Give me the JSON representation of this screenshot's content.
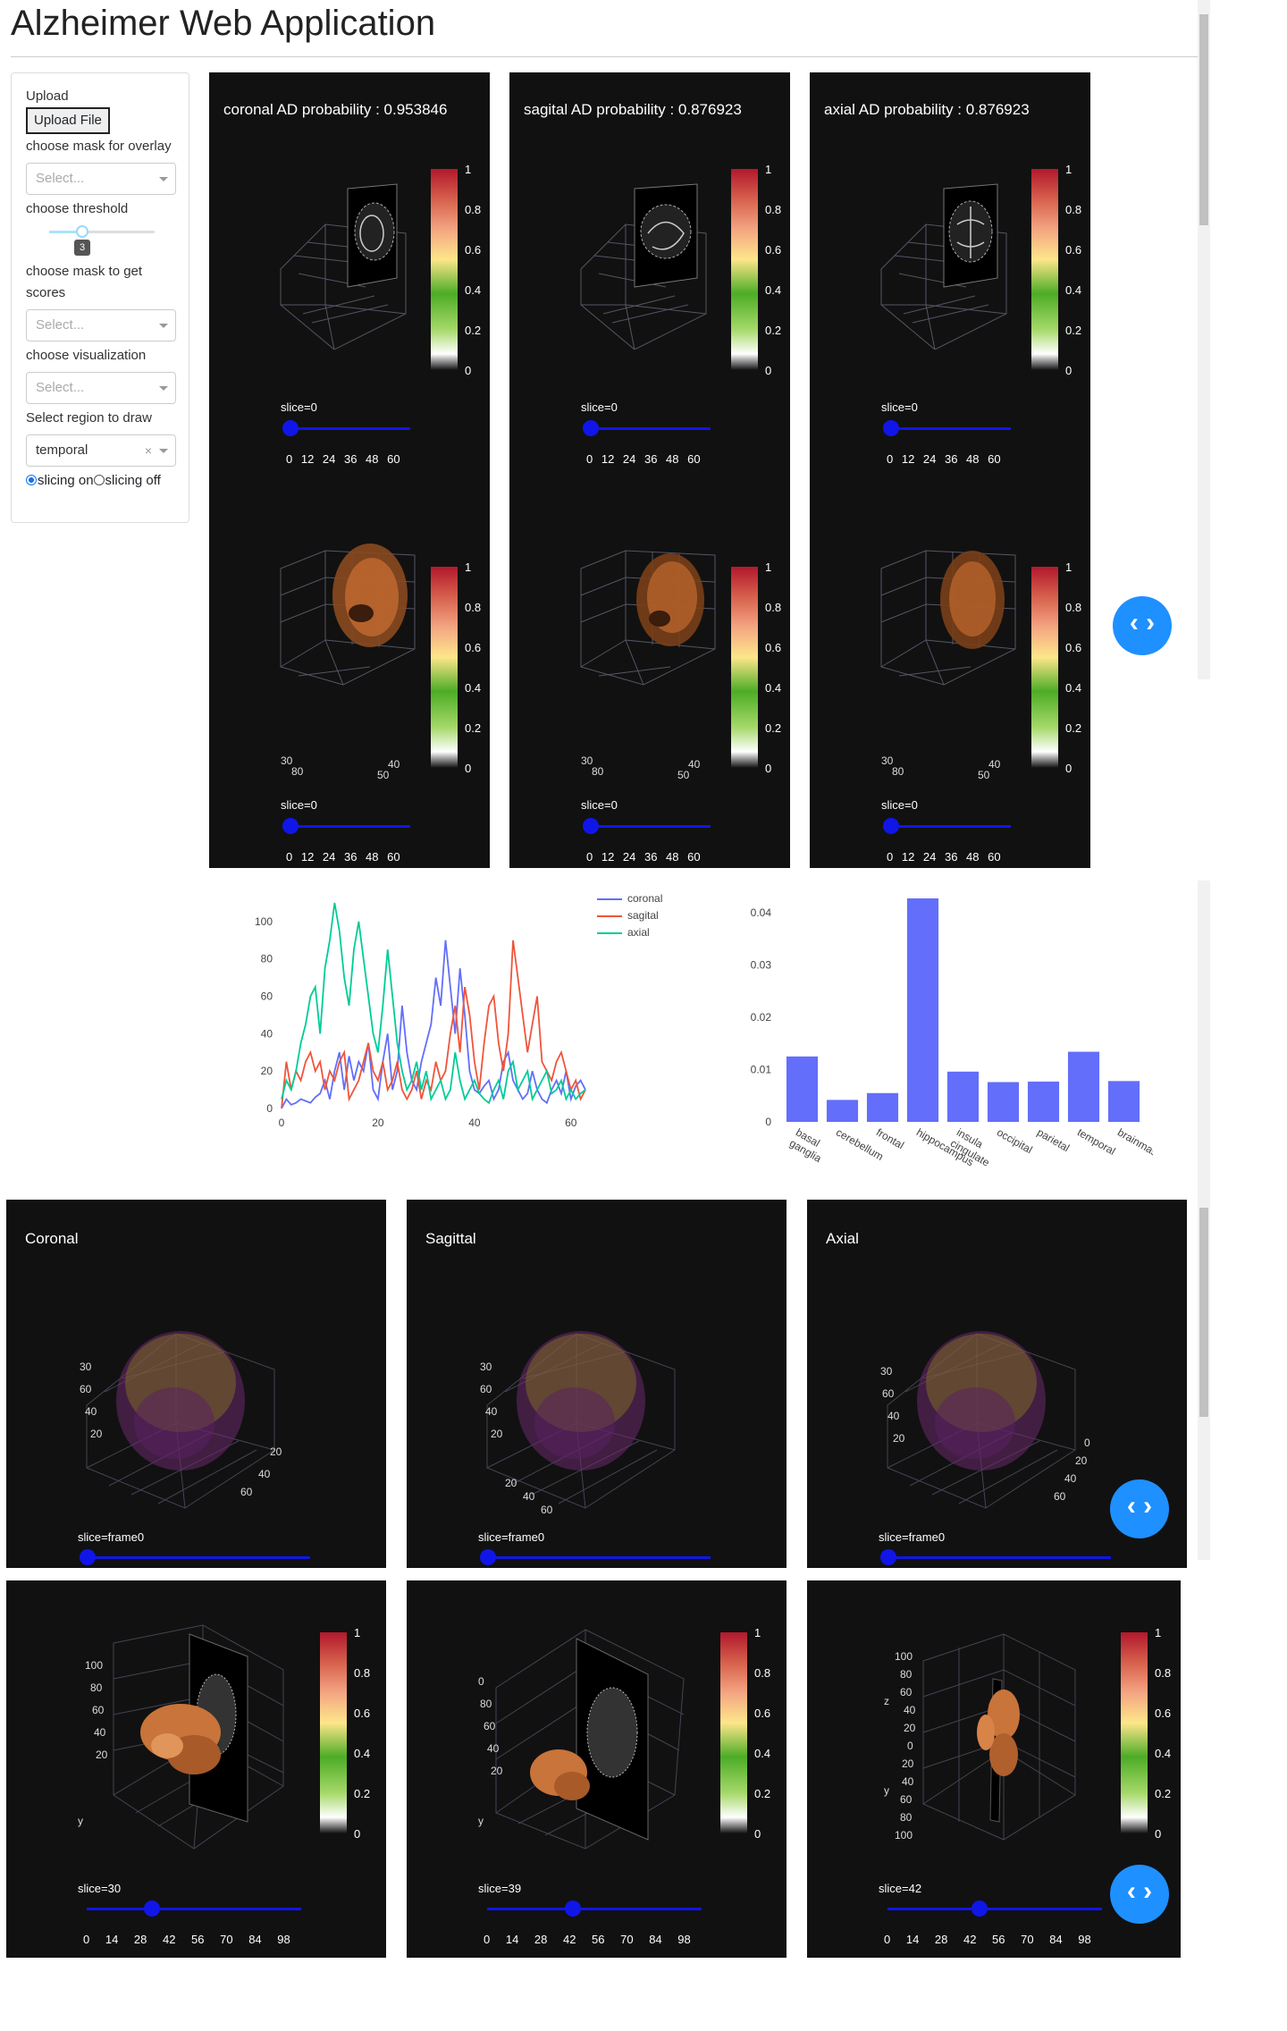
{
  "app": {
    "title": "Alzheimer Web Application"
  },
  "sidebar": {
    "upload_label": "Upload",
    "upload_button": "Upload File",
    "mask_overlay_label": "choose mask for overlay",
    "mask_overlay_placeholder": "Select...",
    "threshold_label": "choose threshold",
    "threshold_value": "3",
    "mask_scores_label": "choose mask to get scores",
    "mask_scores_placeholder": "Select...",
    "visualization_label": "choose visualization",
    "visualization_placeholder": "Select...",
    "region_label": "Select region to draw",
    "region_value": "temporal",
    "slicing_on": "slicing on",
    "slicing_off": "slicing off"
  },
  "top_panels": [
    {
      "title": "coronal AD probability : 0.953846",
      "slice_label": "slice=0",
      "slice_ticks": "0 12 24 36 48 60"
    },
    {
      "title": "sagital AD probability : 0.876923",
      "slice_label": "slice=0",
      "slice_ticks": "0 12 24 36 48 60"
    },
    {
      "title": "axial AD probability : 0.876923",
      "slice_label": "slice=0",
      "slice_ticks": "0 12 24 36 48 60"
    }
  ],
  "second_panels": [
    {
      "slice_label": "slice=0",
      "slice_ticks": "0 12 24 36 48 60"
    },
    {
      "slice_label": "slice=0",
      "slice_ticks": "0 12 24 36 48 60"
    },
    {
      "slice_label": "slice=0",
      "slice_ticks": "0 12 24 36 48 60"
    }
  ],
  "colorbar_ticks": [
    "1",
    "0.8",
    "0.6",
    "0.4",
    "0.2",
    "0"
  ],
  "volume_panels": [
    {
      "title": "Coronal",
      "slice_label": "slice=frame0"
    },
    {
      "title": "Sagittal",
      "slice_label": "slice=frame0"
    },
    {
      "title": "Axial",
      "slice_label": "slice=frame0"
    }
  ],
  "mesh_panels": [
    {
      "slice_label": "slice=30",
      "slice_value": 30,
      "slice_ticks": "0 14 28 42 56 70 84 98"
    },
    {
      "slice_label": "slice=39",
      "slice_value": 39,
      "slice_ticks": "0 14 28 42 56 70 84 98"
    },
    {
      "slice_label": "slice=42",
      "slice_value": 42,
      "slice_ticks": "0 14 28 42 56 70 84 98"
    }
  ],
  "colors": {
    "coronal": "#636efa",
    "sagital": "#ef553b",
    "axial": "#00cc96",
    "bar": "#636efa",
    "slider": "#1016e8",
    "carousel": "#1e90ff"
  },
  "icons": {
    "carousel": "chevrons-left-right-icon"
  },
  "chart_data": [
    {
      "type": "line",
      "title": "",
      "xlabel": "",
      "ylabel": "",
      "xlim": [
        0,
        63
      ],
      "ylim": [
        0,
        110
      ],
      "x_ticks": [
        0,
        20,
        40,
        60
      ],
      "y_ticks": [
        0,
        20,
        40,
        60,
        80,
        100
      ],
      "legend_position": "top-right",
      "series": [
        {
          "name": "coronal",
          "color": "#636efa",
          "values": [
            0,
            5,
            2,
            3,
            5,
            4,
            3,
            6,
            8,
            15,
            5,
            20,
            30,
            10,
            28,
            15,
            25,
            20,
            35,
            10,
            5,
            25,
            40,
            10,
            20,
            55,
            30,
            15,
            10,
            25,
            35,
            45,
            70,
            55,
            90,
            65,
            40,
            75,
            50,
            20,
            10,
            8,
            12,
            15,
            5,
            10,
            25,
            30,
            15,
            10,
            5,
            8,
            20,
            10,
            5,
            3,
            10,
            15,
            8,
            20,
            5,
            12,
            15,
            10
          ]
        },
        {
          "name": "sagital",
          "color": "#ef553b",
          "values": [
            0,
            25,
            10,
            20,
            15,
            25,
            30,
            20,
            25,
            10,
            20,
            15,
            25,
            30,
            5,
            10,
            15,
            25,
            35,
            20,
            15,
            25,
            10,
            15,
            25,
            10,
            5,
            10,
            20,
            5,
            15,
            10,
            25,
            15,
            20,
            40,
            55,
            30,
            65,
            50,
            25,
            10,
            35,
            55,
            60,
            35,
            20,
            40,
            90,
            70,
            50,
            30,
            45,
            60,
            25,
            20,
            15,
            25,
            30,
            20,
            10,
            15,
            5,
            10
          ]
        },
        {
          "name": "axial",
          "color": "#00cc96",
          "values": [
            5,
            15,
            10,
            20,
            35,
            45,
            60,
            65,
            40,
            75,
            90,
            110,
            95,
            70,
            55,
            85,
            100,
            80,
            60,
            40,
            30,
            55,
            85,
            60,
            35,
            20,
            10,
            15,
            25,
            10,
            20,
            5,
            10,
            15,
            5,
            10,
            30,
            15,
            5,
            10,
            15,
            8,
            5,
            3,
            10,
            15,
            5,
            20,
            25,
            10,
            15,
            20,
            5,
            10,
            15,
            20,
            8,
            10,
            15,
            5,
            10,
            5,
            8,
            10
          ]
        }
      ]
    },
    {
      "type": "bar",
      "title": "",
      "xlabel": "",
      "ylabel": "",
      "categories": [
        "basal ganglia",
        "cerebellum",
        "frontal",
        "hippocampus",
        "insula cingulate",
        "occipital",
        "parietal",
        "temporal",
        "brainmask"
      ],
      "values": [
        0.0125,
        0.0042,
        0.0055,
        0.0427,
        0.0096,
        0.0076,
        0.0077,
        0.0134,
        0.0078
      ],
      "ylim": [
        0,
        0.0427
      ],
      "y_ticks": [
        0,
        0.01,
        0.02,
        0.03,
        0.04
      ]
    }
  ]
}
